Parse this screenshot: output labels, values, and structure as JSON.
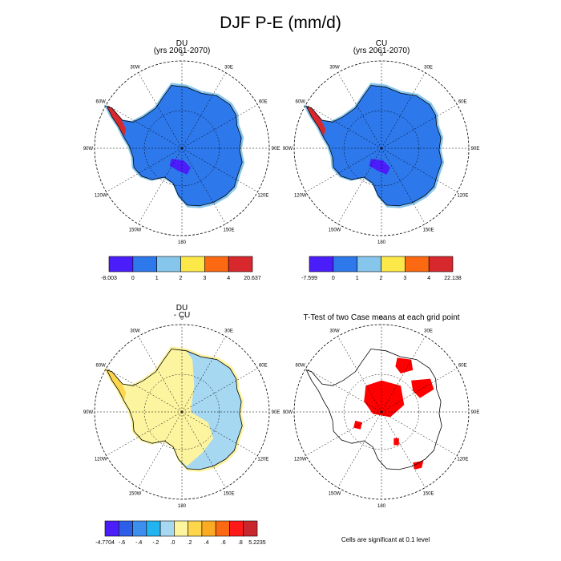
{
  "figure": {
    "title": "DJF P-E (mm/d)",
    "note": "Cells are significant at 0.1 level"
  },
  "colors": {
    "land_outline": "#000000",
    "grid": "#000000",
    "significant": "#ff0000"
  },
  "longitude_labels": [
    "0",
    "30E",
    "60E",
    "90E",
    "120E",
    "150E",
    "180",
    "150W",
    "120W",
    "90W",
    "60W",
    "30W"
  ],
  "chart_data": [
    {
      "type": "heatmap",
      "id": "du",
      "title": "DU",
      "subtitle": "(yrs 2061-2070)",
      "projection": "south-polar-stereographic",
      "colorbar": {
        "labels": [
          "-8.003",
          "0",
          "1",
          "2",
          "3",
          "4",
          "20.637"
        ],
        "colors": [
          "#4b1dfa",
          "#2d78eb",
          "#86c5ec",
          "#fde84a",
          "#fb6a12",
          "#d7282d"
        ]
      }
    },
    {
      "type": "heatmap",
      "id": "cu",
      "title": "CU",
      "subtitle": "(yrs 2061-2070)",
      "projection": "south-polar-stereographic",
      "colorbar": {
        "labels": [
          "-7.599",
          "0",
          "1",
          "2",
          "3",
          "4",
          "22.138"
        ],
        "colors": [
          "#4b1dfa",
          "#2d78eb",
          "#86c5ec",
          "#fde84a",
          "#fb6a12",
          "#d7282d"
        ]
      }
    },
    {
      "type": "heatmap",
      "id": "diff",
      "title": "DU",
      "subtitle": "- CU",
      "projection": "south-polar-stereographic",
      "colorbar": {
        "labels": [
          "-4.7704",
          "-.6",
          "-.4",
          "-.2",
          ".0",
          ".2",
          ".4",
          ".6",
          ".8",
          "5.2235"
        ],
        "colors": [
          "#4b1dfa",
          "#2d5ee8",
          "#3d8fee",
          "#21b4ee",
          "#a6d8f2",
          "#fdf4a0",
          "#fdd64c",
          "#fbab22",
          "#fb6a12",
          "#ff1a1a",
          "#c8282d"
        ]
      }
    },
    {
      "type": "heatmap",
      "id": "ttest",
      "title": "T-Test of two Case means at each grid point",
      "projection": "south-polar-stereographic",
      "legend": "Cells are significant at 0.1 level"
    }
  ]
}
